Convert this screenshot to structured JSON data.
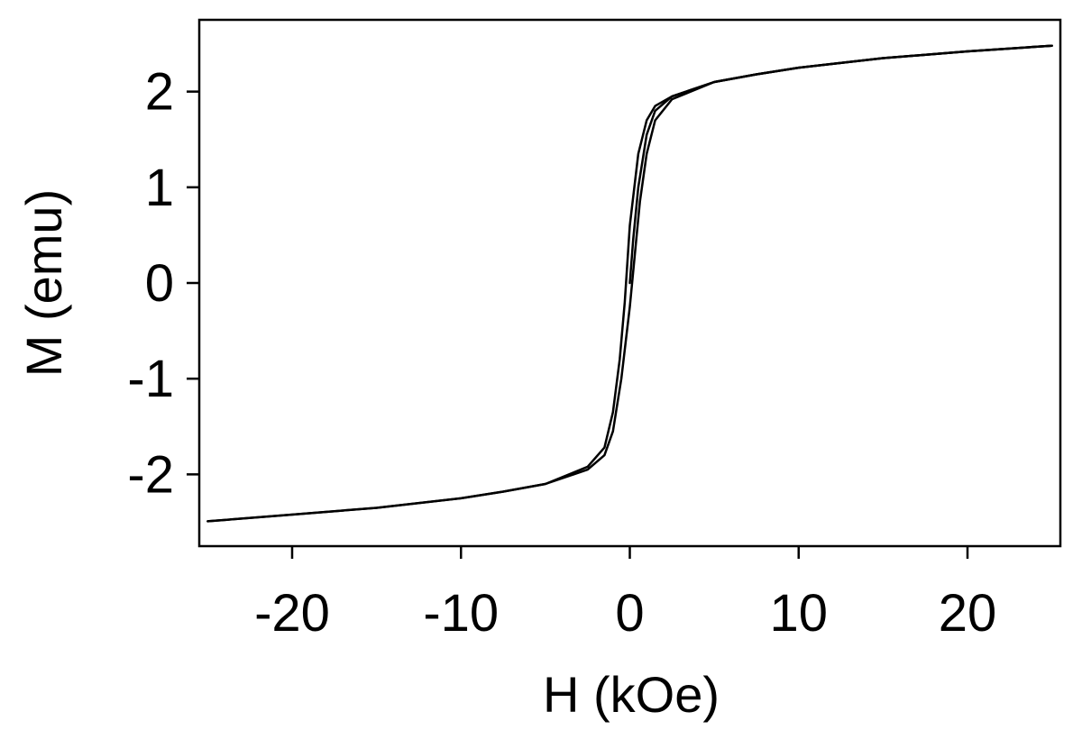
{
  "chart_data": {
    "type": "line",
    "title": "",
    "xlabel": "H (kOe)",
    "ylabel": "M (emu)",
    "xlim": [
      -25.5,
      25.5
    ],
    "ylim": [
      -2.75,
      2.75
    ],
    "xticks": [
      -20,
      -10,
      0,
      10,
      20
    ],
    "yticks": [
      -2,
      -1,
      0,
      1,
      2
    ],
    "xtick_labels": [
      "-20",
      "-10",
      "0",
      "10",
      "20"
    ],
    "ytick_labels": [
      "-2",
      "-1",
      "0",
      "1",
      "2"
    ],
    "grid": false,
    "legend": "none",
    "line_color": "#000000",
    "series": [
      {
        "x": [
          0,
          0.2,
          0.5,
          1.0,
          1.5,
          2.5,
          5,
          7.5,
          10,
          15,
          20,
          25
        ],
        "y": [
          0,
          0.45,
          1.0,
          1.55,
          1.8,
          1.95,
          2.1,
          2.18,
          2.25,
          2.35,
          2.42,
          2.48
        ]
      },
      {
        "x": [
          25,
          20,
          15,
          10,
          7.5,
          5,
          2.5,
          1.5,
          1.0,
          0.5,
          0,
          -0.3,
          -0.6,
          -1.0,
          -1.5,
          -2.5,
          -5,
          -7.5,
          -10,
          -15,
          -20,
          -25
        ],
        "y": [
          2.48,
          2.42,
          2.35,
          2.25,
          2.18,
          2.1,
          1.95,
          1.85,
          1.7,
          1.35,
          0.6,
          -0.2,
          -0.8,
          -1.35,
          -1.72,
          -1.92,
          -2.1,
          -2.18,
          -2.25,
          -2.35,
          -2.42,
          -2.49
        ]
      },
      {
        "x": [
          -25,
          -20,
          -15,
          -10,
          -7.5,
          -5,
          -2.5,
          -1.5,
          -1.0,
          -0.5,
          0,
          0.3,
          0.6,
          1.0,
          1.5,
          2.5,
          5,
          7.5,
          10,
          15,
          20,
          25
        ],
        "y": [
          -2.49,
          -2.42,
          -2.35,
          -2.25,
          -2.18,
          -2.1,
          -1.95,
          -1.8,
          -1.55,
          -1.0,
          -0.25,
          0.3,
          0.85,
          1.35,
          1.7,
          1.92,
          2.1,
          2.18,
          2.25,
          2.35,
          2.42,
          2.48
        ]
      }
    ]
  }
}
